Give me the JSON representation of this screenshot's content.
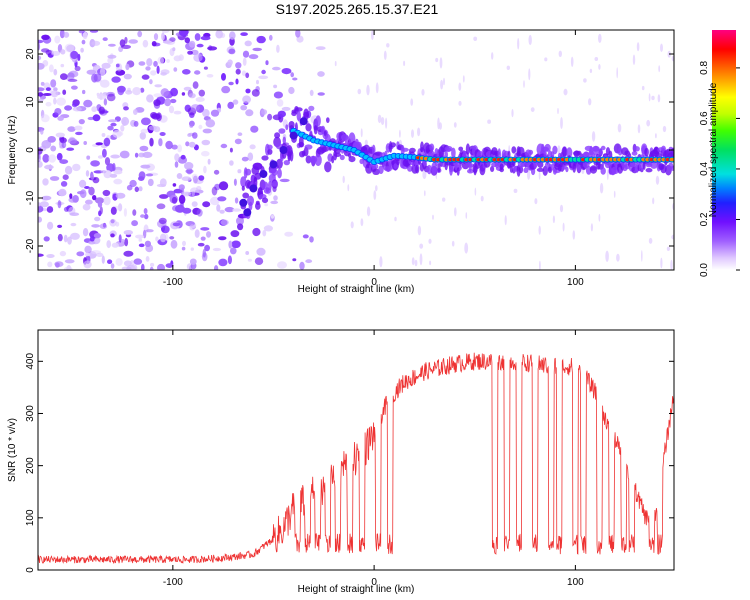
{
  "title": "S197.2025.265.15.37.E21",
  "chart_data": [
    {
      "type": "heatmap",
      "name": "spectrogram",
      "xlabel": "Height of straight line (km)",
      "ylabel": "Frequency (Hz)",
      "xlim": [
        -167,
        149
      ],
      "ylim": [
        -25,
        25
      ],
      "xticks": [
        -100,
        0,
        100
      ],
      "yticks": [
        -20,
        -10,
        0,
        10,
        20
      ],
      "colorbar": {
        "label": "Normalized spectral amplitude",
        "range": [
          0,
          0.95
        ],
        "ticks": [
          0.0,
          0.2,
          0.4,
          0.6,
          0.8
        ],
        "colors": [
          "#ffffff",
          "#e0c8ff",
          "#a060ff",
          "#7010ff",
          "#2020ff",
          "#0080ff",
          "#00e0e0",
          "#00e060",
          "#40ff00",
          "#c0ff00",
          "#ffff00",
          "#ff8000",
          "#ff0000",
          "#ff0080"
        ]
      },
      "noise_region_x": [
        -167,
        -25
      ],
      "signal_track": [
        {
          "x": -60,
          "f": -9
        },
        {
          "x": -50,
          "f": -3
        },
        {
          "x": -40,
          "f": 4
        },
        {
          "x": -30,
          "f": 2
        },
        {
          "x": -20,
          "f": 1
        },
        {
          "x": -10,
          "f": 0
        },
        {
          "x": 0,
          "f": -2.5
        },
        {
          "x": 10,
          "f": -1.2
        },
        {
          "x": 20,
          "f": -1.5
        },
        {
          "x": 30,
          "f": -2
        },
        {
          "x": 50,
          "f": -2
        },
        {
          "x": 80,
          "f": -2
        },
        {
          "x": 110,
          "f": -2
        },
        {
          "x": 149,
          "f": -2
        }
      ]
    },
    {
      "type": "line",
      "name": "snr",
      "xlabel": "Height of straight line (km)",
      "ylabel": "SNR (10 * v/v)",
      "xlim": [
        -167,
        149
      ],
      "ylim": [
        0,
        460
      ],
      "xticks": [
        -100,
        0,
        100
      ],
      "yticks": [
        0,
        100,
        200,
        300,
        400
      ],
      "color": "#ee3333",
      "series": [
        {
          "name": "SNR",
          "x": [
            -167,
            -150,
            -130,
            -110,
            -90,
            -80,
            -70,
            -60,
            -50,
            -45,
            -40,
            -35,
            -30,
            -25,
            -20,
            -15,
            -10,
            -5,
            0,
            5,
            10,
            15,
            20,
            25,
            30,
            40,
            50,
            55,
            60,
            70,
            80,
            90,
            100,
            105,
            110,
            115,
            120,
            125,
            130,
            135,
            140,
            145,
            149
          ],
          "values": [
            20,
            20,
            20,
            20,
            20,
            22,
            25,
            30,
            60,
            80,
            120,
            130,
            150,
            160,
            180,
            200,
            210,
            230,
            260,
            310,
            340,
            360,
            370,
            380,
            385,
            395,
            400,
            400,
            400,
            400,
            395,
            390,
            390,
            370,
            340,
            290,
            250,
            200,
            150,
            100,
            110,
            240,
            340
          ]
        }
      ]
    }
  ]
}
